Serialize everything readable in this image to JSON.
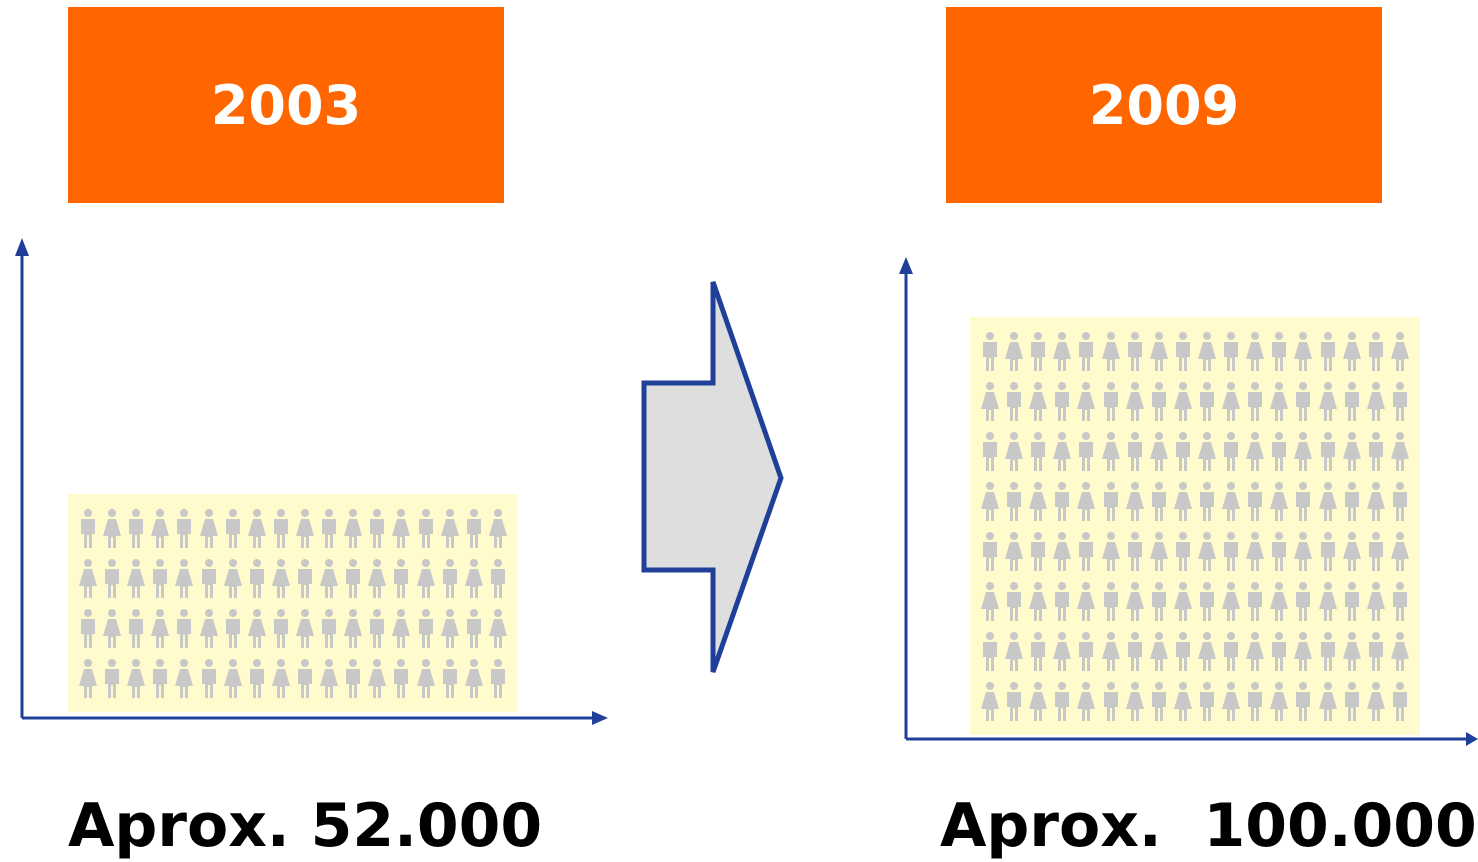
{
  "left_panel": {
    "year": "2003",
    "caption": "Aprox. 52.000",
    "people_rows": 4
  },
  "right_panel": {
    "year": "2009",
    "caption": "Aprox.  100.000",
    "people_rows": 8
  },
  "people_per_row": 18,
  "colors": {
    "year_box": "#ff6600",
    "axis": "#1f3f99",
    "crowd_background": "#fffbcc",
    "person": "#c8c8c8",
    "arrow_fill": "#dedede"
  },
  "icons": {
    "person": "person-icon",
    "transition_arrow": "right-arrow-icon"
  }
}
